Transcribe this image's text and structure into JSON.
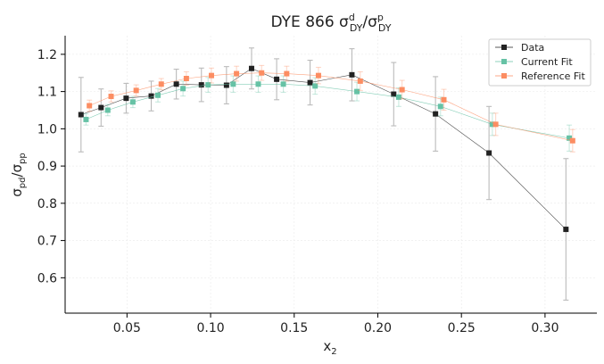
{
  "chart_data": {
    "type": "scatter",
    "title": {
      "main": "DYE 866 σ",
      "sup": "d",
      "sub": "DY",
      "slash": "/σ",
      "sup2": "p",
      "sub2": "DY"
    },
    "xlabel": {
      "main": "x",
      "sub": "2"
    },
    "ylabel": {
      "main": "σ",
      "sub1": "pd",
      "mid": "/σ",
      "sub2": "pp"
    },
    "xlim": [
      0.013,
      0.331
    ],
    "ylim": [
      0.505,
      1.25
    ],
    "xticks": [
      0.05,
      0.1,
      0.15,
      0.2,
      0.25,
      0.3
    ],
    "xtick_labels": [
      "0.05",
      "0.10",
      "0.15",
      "0.20",
      "0.25",
      "0.30"
    ],
    "yticks": [
      0.6,
      0.7,
      0.8,
      0.9,
      1.0,
      1.1,
      1.2
    ],
    "ytick_labels": [
      "0.6",
      "0.7",
      "0.8",
      "0.9",
      "1.0",
      "1.1",
      "1.2"
    ],
    "legend_position": "top-right",
    "grid": true,
    "series": [
      {
        "name": "Data",
        "color": "#222222",
        "x": [
          0.0225,
          0.0345,
          0.0495,
          0.0645,
          0.0795,
          0.0945,
          0.1095,
          0.1245,
          0.1395,
          0.1595,
          0.1845,
          0.2095,
          0.2345,
          0.2665,
          0.3125
        ],
        "y": [
          1.038,
          1.057,
          1.082,
          1.088,
          1.12,
          1.118,
          1.117,
          1.162,
          1.133,
          1.124,
          1.145,
          1.093,
          1.04,
          0.935,
          0.73
        ],
        "err": [
          0.1,
          0.05,
          0.04,
          0.04,
          0.04,
          0.045,
          0.05,
          0.055,
          0.055,
          0.06,
          0.07,
          0.085,
          0.1,
          0.125,
          0.19
        ]
      },
      {
        "name": "Current Fit",
        "color": "#66c2a5",
        "x": [
          0.0255,
          0.0385,
          0.0535,
          0.0685,
          0.0835,
          0.0985,
          0.1135,
          0.1285,
          0.1435,
          0.1625,
          0.1875,
          0.2125,
          0.2375,
          0.2685,
          0.3145
        ],
        "y": [
          1.025,
          1.05,
          1.072,
          1.09,
          1.108,
          1.118,
          1.12,
          1.12,
          1.12,
          1.115,
          1.1,
          1.085,
          1.06,
          1.012,
          0.975
        ],
        "err": [
          0.015,
          0.015,
          0.015,
          0.018,
          0.02,
          0.02,
          0.022,
          0.022,
          0.022,
          0.022,
          0.025,
          0.025,
          0.025,
          0.03,
          0.035
        ]
      },
      {
        "name": "Reference Fit",
        "color": "#fc8d62",
        "x": [
          0.0275,
          0.0405,
          0.0555,
          0.0705,
          0.0855,
          0.1005,
          0.1155,
          0.1305,
          0.1455,
          0.1645,
          0.1895,
          0.2145,
          0.2395,
          0.2705,
          0.3165
        ],
        "y": [
          1.062,
          1.087,
          1.103,
          1.12,
          1.135,
          1.143,
          1.148,
          1.15,
          1.148,
          1.143,
          1.128,
          1.105,
          1.078,
          1.012,
          0.968
        ],
        "err": [
          0.015,
          0.015,
          0.015,
          0.015,
          0.018,
          0.02,
          0.02,
          0.02,
          0.02,
          0.022,
          0.025,
          0.025,
          0.028,
          0.03,
          0.03
        ]
      }
    ]
  }
}
